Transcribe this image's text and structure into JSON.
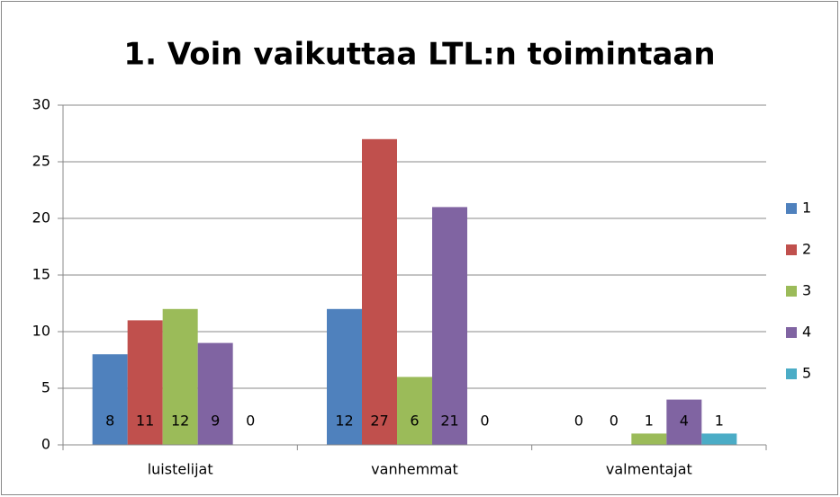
{
  "chart_data": {
    "type": "bar",
    "title": "1. Voin vaikuttaa LTL:n toimintaan",
    "categories": [
      "luistelijat",
      "vanhemmat",
      "valmentajat"
    ],
    "series": [
      {
        "name": "1",
        "color": "#4f81bd",
        "values": [
          8,
          12,
          0
        ]
      },
      {
        "name": "2",
        "color": "#c0504d",
        "values": [
          11,
          27,
          0
        ]
      },
      {
        "name": "3",
        "color": "#9bbb59",
        "values": [
          12,
          6,
          1
        ]
      },
      {
        "name": "4",
        "color": "#8064a2",
        "values": [
          9,
          21,
          4
        ]
      },
      {
        "name": "5",
        "color": "#4bacc6",
        "values": [
          0,
          0,
          1
        ]
      }
    ],
    "ylim": [
      0,
      30
    ],
    "yticks": [
      0,
      5,
      10,
      15,
      20,
      25,
      30
    ],
    "grid": true,
    "legend": "right"
  }
}
